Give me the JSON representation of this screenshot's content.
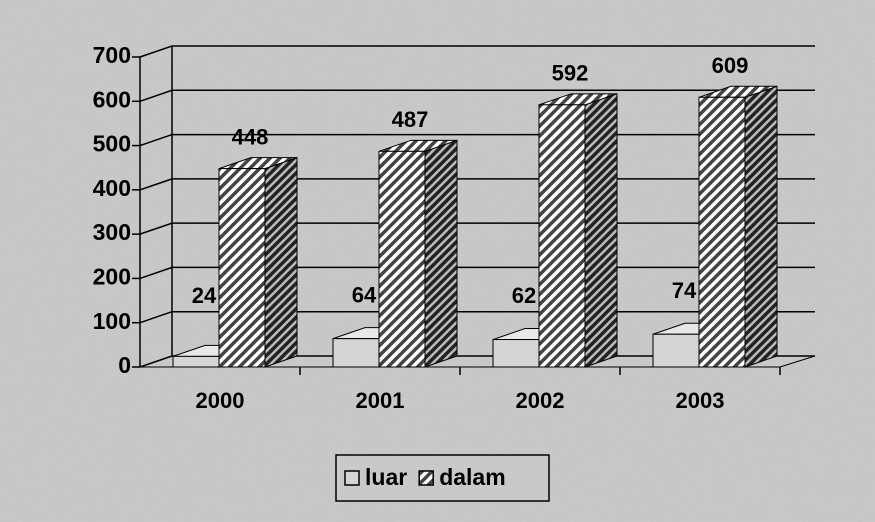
{
  "chart_data": {
    "type": "bar3d",
    "categories": [
      "2000",
      "2001",
      "2002",
      "2003"
    ],
    "series": [
      {
        "name": "luar",
        "color": "#d4d4d4",
        "values": [
          24,
          64,
          62,
          74
        ]
      },
      {
        "name": "dalam",
        "color": "#444444",
        "pattern": "diagonal",
        "values": [
          448,
          487,
          592,
          609
        ]
      }
    ],
    "ylim": [
      0,
      700
    ],
    "yticks": [
      0,
      100,
      200,
      300,
      400,
      500,
      600,
      700
    ],
    "grid": true,
    "legend": "bottom"
  }
}
